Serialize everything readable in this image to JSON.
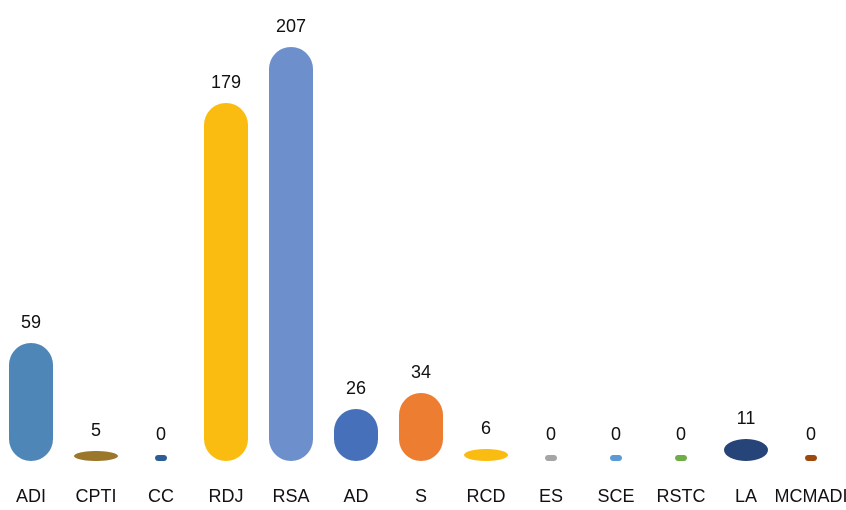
{
  "chart_data": {
    "type": "bar",
    "categories": [
      "ADI",
      "CPTI",
      "CC",
      "RDJ",
      "RSA",
      "AD",
      "S",
      "RCD",
      "ES",
      "SCE",
      "RSTC",
      "LA",
      "MCMADI"
    ],
    "values": [
      59,
      5,
      0,
      179,
      207,
      26,
      34,
      6,
      0,
      0,
      0,
      11,
      0
    ],
    "colors": [
      "#4f86b8",
      "#9a772b",
      "#2c5d94",
      "#fbbc12",
      "#6d8fcb",
      "#4670b9",
      "#ed7d31",
      "#fbbc12",
      "#a5a5a5",
      "#5b9bd5",
      "#70ad47",
      "#264478",
      "#9e480e"
    ]
  }
}
